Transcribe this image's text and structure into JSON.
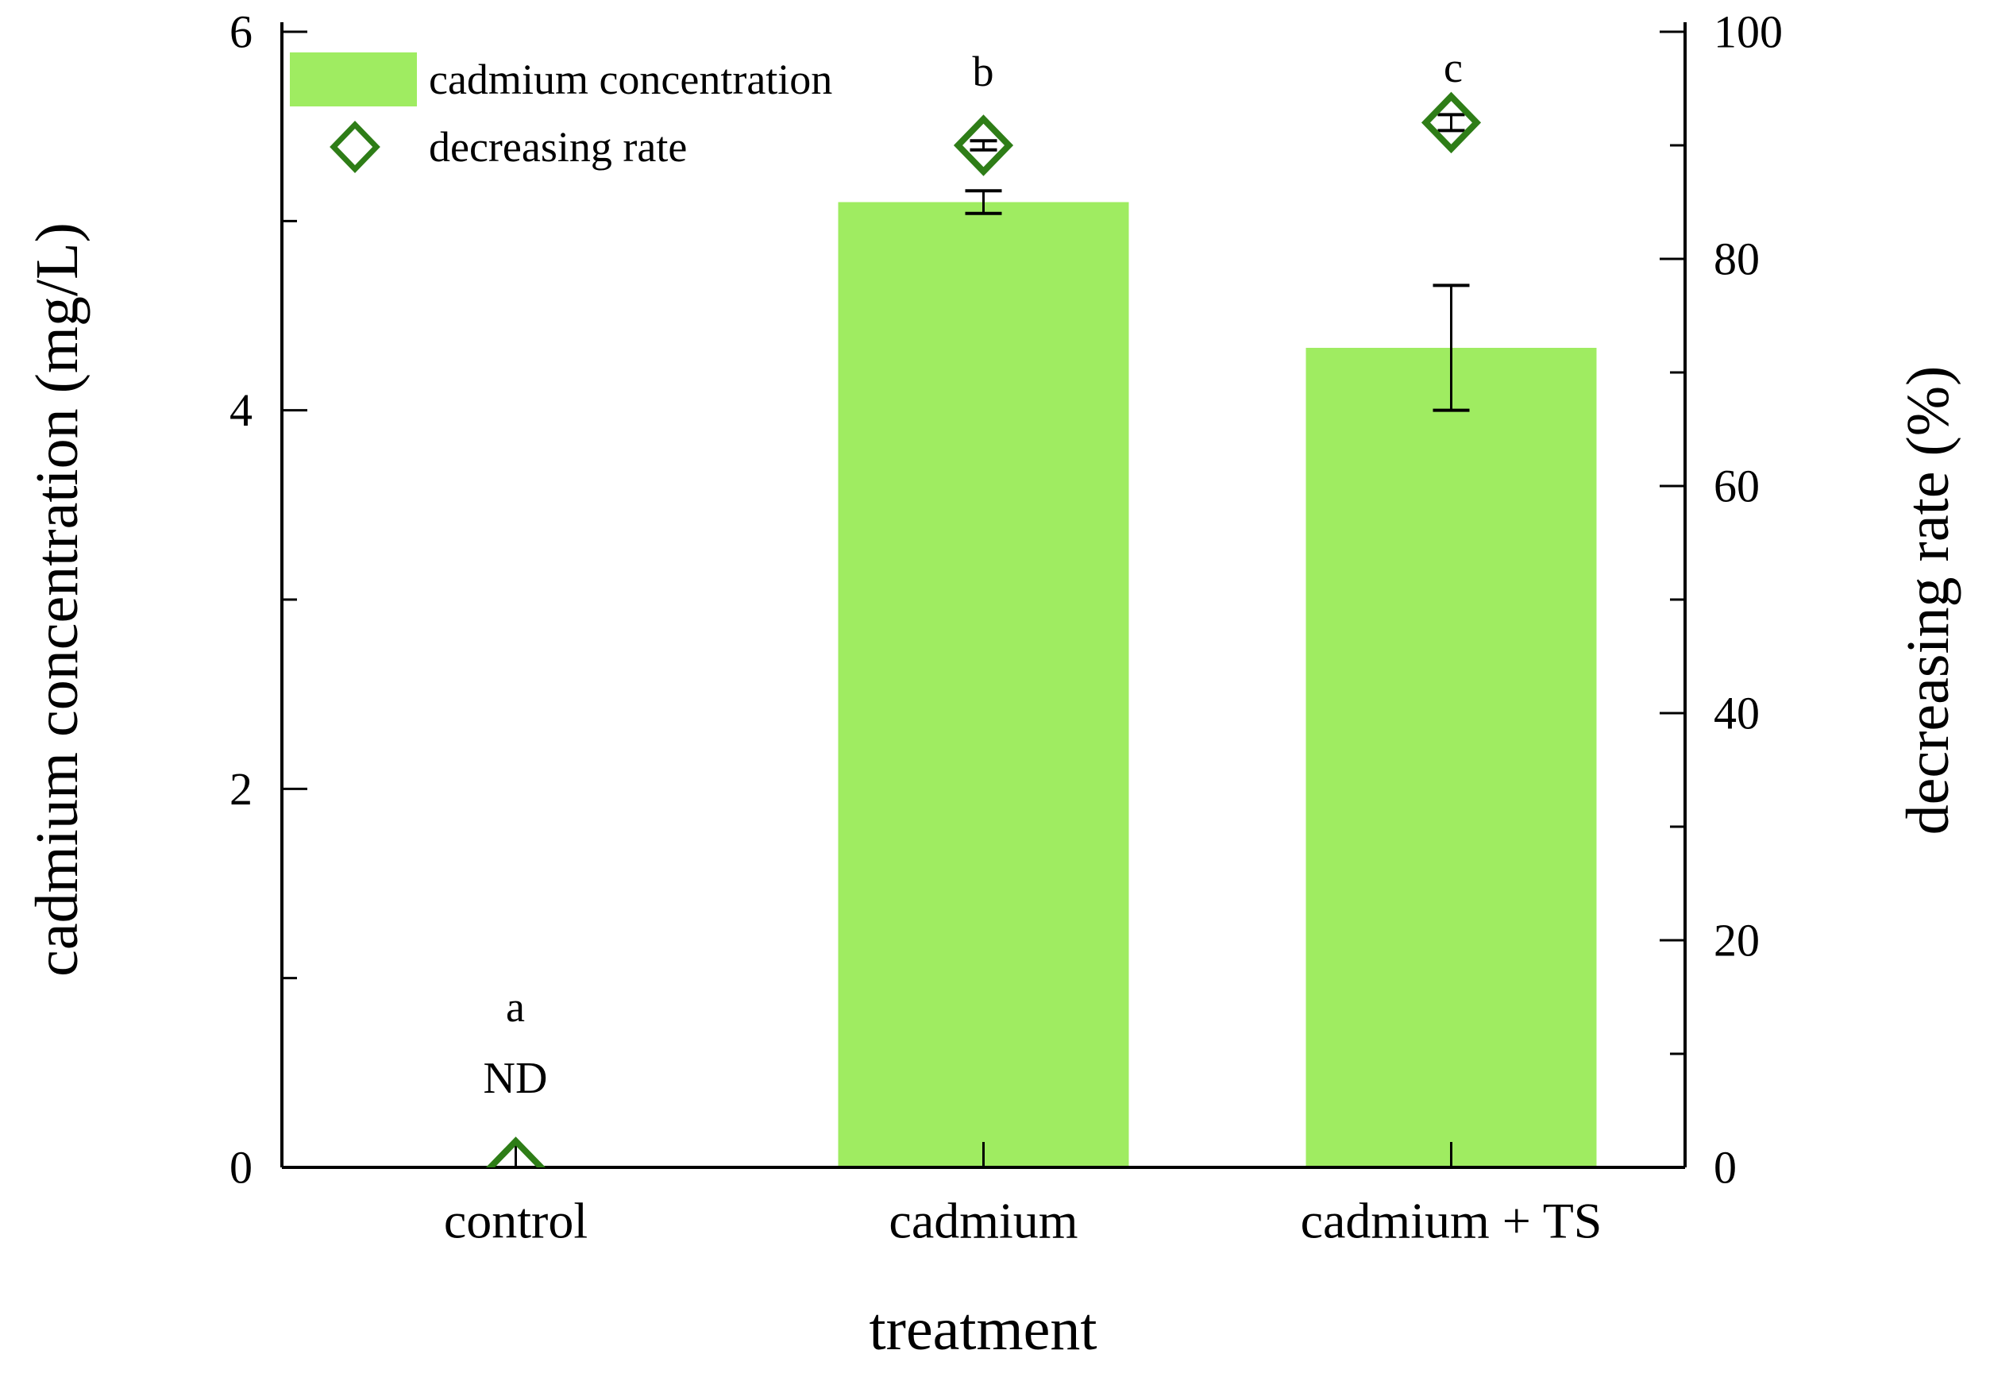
{
  "chart_data": {
    "type": "bar",
    "xlabel": "treatment",
    "ylabel_left": "cadmium concentration (mg/L)",
    "ylabel_right": "decreasing rate (%)",
    "categories": [
      "control",
      "cadmium",
      "cadmium + TS"
    ],
    "series": [
      {
        "name": "cadmium concentration",
        "marker": "bar",
        "axis": "left",
        "color": "#9fec61",
        "values": [
          0,
          5.1,
          4.33
        ],
        "errors": [
          0,
          0.06,
          0.33
        ]
      },
      {
        "name": "decreasing rate",
        "marker": "diamond",
        "axis": "right",
        "color": "#2e7d17",
        "values": [
          0,
          90,
          92
        ],
        "errors": [
          0,
          0.4,
          0.7
        ]
      }
    ],
    "annotations": {
      "sig_letters": [
        "a",
        "b",
        "c"
      ],
      "nd_label": "ND",
      "nd_category": "control"
    },
    "axes": {
      "left": {
        "min": 0,
        "max": 6,
        "major_ticks": [
          0,
          2,
          4,
          6
        ],
        "minor_ticks": [
          1,
          3,
          5
        ],
        "tick_labels": [
          "0",
          "2",
          "4",
          "6"
        ]
      },
      "right": {
        "min": 0,
        "max": 100,
        "major_ticks": [
          0,
          20,
          40,
          60,
          80,
          100
        ],
        "minor_ticks": [
          10,
          30,
          50,
          70,
          90
        ],
        "tick_labels": [
          "0",
          "20",
          "40",
          "60",
          "80",
          "100"
        ]
      },
      "x": {
        "tick_style": "inward"
      }
    },
    "legend": {
      "position": "top-left",
      "entries": [
        {
          "label": "cadmium concentration",
          "swatch": "bar-fill",
          "color": "#9fec61"
        },
        {
          "label": "decreasing rate",
          "swatch": "diamond-outline",
          "color": "#2e7d17"
        }
      ]
    },
    "grid": false,
    "frame": {
      "top_spine": false
    },
    "colors": {
      "axis": "#000000",
      "text": "#000000",
      "background": "#ffffff"
    }
  }
}
